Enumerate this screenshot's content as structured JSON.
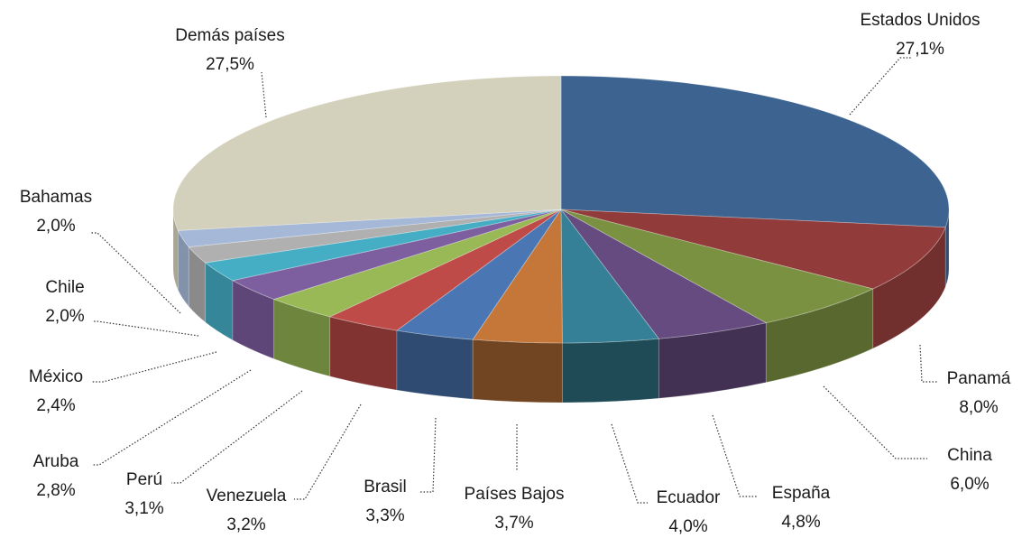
{
  "chart_data": {
    "type": "pie",
    "style": "3d-exploded-none",
    "colors": [
      "#3d6390",
      "#913c3a",
      "#7a9141",
      "#654b80",
      "#358096",
      "#c5773a",
      "#4a77b3",
      "#be4b48",
      "#98b955",
      "#7d5fa0",
      "#45aec5",
      "#b0b0b0",
      "#a5b8d7",
      "#d3d0bb"
    ],
    "slices": [
      {
        "label": "Estados Unidos",
        "pct_text": "27,1%",
        "value": 27.1
      },
      {
        "label": "Panamá",
        "pct_text": "8,0%",
        "value": 8.0
      },
      {
        "label": "China",
        "pct_text": "6,0%",
        "value": 6.0
      },
      {
        "label": "España",
        "pct_text": "4,8%",
        "value": 4.8
      },
      {
        "label": "Ecuador",
        "pct_text": "4,0%",
        "value": 4.0
      },
      {
        "label": "Países Bajos",
        "pct_text": "3,7%",
        "value": 3.7
      },
      {
        "label": "Brasil",
        "pct_text": "3,3%",
        "value": 3.3
      },
      {
        "label": "Venezuela",
        "pct_text": "3,2%",
        "value": 3.2
      },
      {
        "label": "Perú",
        "pct_text": "3,1%",
        "value": 3.1
      },
      {
        "label": "Aruba",
        "pct_text": "2,8%",
        "value": 2.8
      },
      {
        "label": "México",
        "pct_text": "2,4%",
        "value": 2.4
      },
      {
        "label": "Chile",
        "pct_text": "2,0%",
        "value": 2.0
      },
      {
        "label": "Bahamas",
        "pct_text": "2,0%",
        "value": 2.0
      },
      {
        "label": "Demás países",
        "pct_text": "27,5%",
        "value": 27.5
      }
    ]
  }
}
